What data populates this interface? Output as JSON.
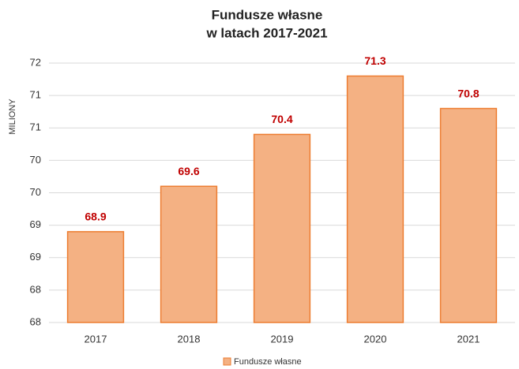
{
  "chart_data": {
    "type": "bar",
    "title": [
      "Fundusze własne",
      "w latach 2017-2021"
    ],
    "y_label": "MILIONY",
    "categories": [
      "2017",
      "2018",
      "2019",
      "2020",
      "2021"
    ],
    "series": [
      {
        "name": "Fundusze własne",
        "color": "#f4b183",
        "edge_color": "#ed7d31",
        "values": [
          68.9,
          69.6,
          70.4,
          71.3,
          70.8
        ],
        "label_color": "#c00000"
      }
    ],
    "ylim": [
      67.5,
      71.5
    ],
    "yticks": [
      {
        "value": 67.5,
        "label": "68"
      },
      68,
      {
        "value": 68.5,
        "label": "69"
      },
      69,
      {
        "value": 69.5,
        "label": "70"
      },
      70,
      {
        "value": 70.5,
        "label": "71"
      },
      71,
      {
        "value": 71.5,
        "label": "72"
      }
    ],
    "grid": true,
    "legend": "bottom"
  }
}
